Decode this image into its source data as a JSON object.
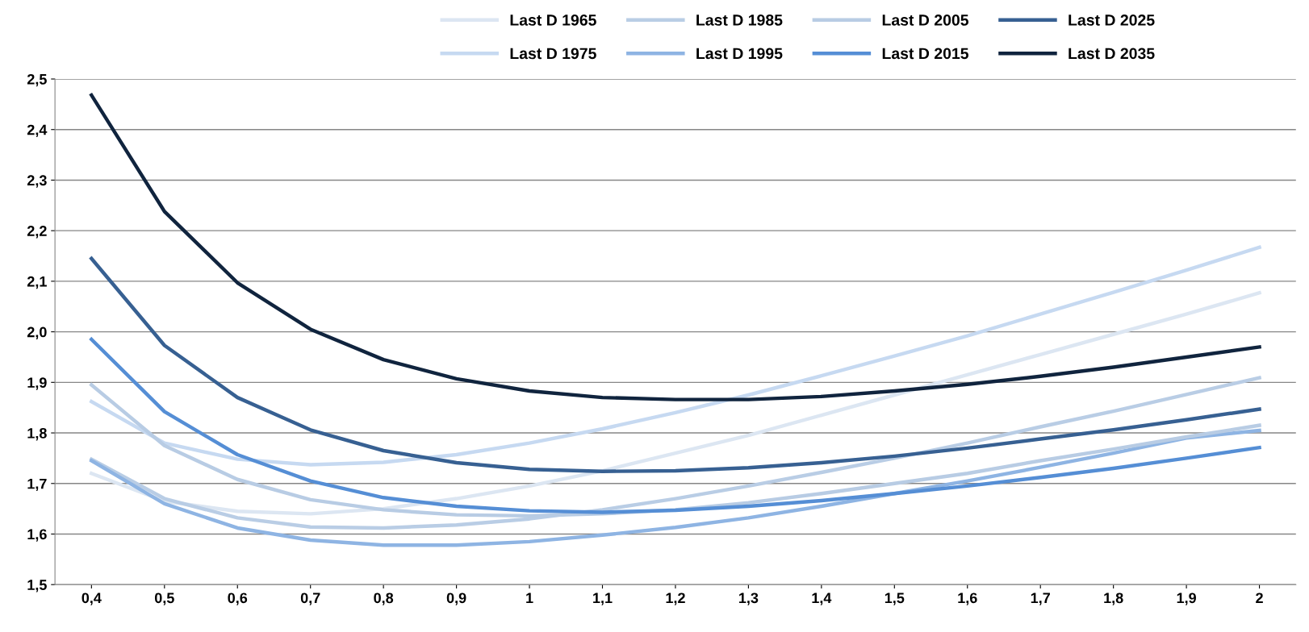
{
  "chart_data": {
    "type": "line",
    "categories": [
      "0,4",
      "0,5",
      "0,6",
      "0,7",
      "0,8",
      "0,9",
      "1",
      "1,1",
      "1,2",
      "1,3",
      "1,4",
      "1,5",
      "1,6",
      "1,7",
      "1,8",
      "1,9",
      "2"
    ],
    "series": [
      {
        "name": "Last D 1965",
        "color": "#dce6f2",
        "values": [
          1.72,
          1.665,
          1.645,
          1.64,
          1.65,
          1.67,
          1.695,
          1.725,
          1.76,
          1.795,
          1.835,
          1.875,
          1.915,
          1.955,
          1.995,
          2.035,
          2.077
        ]
      },
      {
        "name": "Last D 1975",
        "color": "#c6d9f1",
        "values": [
          1.862,
          1.78,
          1.748,
          1.737,
          1.742,
          1.757,
          1.78,
          1.808,
          1.84,
          1.875,
          1.913,
          1.952,
          1.992,
          2.035,
          2.078,
          2.122,
          2.167
        ]
      },
      {
        "name": "Last D 1985",
        "color": "#b9cde5",
        "values": [
          1.748,
          1.67,
          1.632,
          1.614,
          1.612,
          1.618,
          1.63,
          1.648,
          1.67,
          1.695,
          1.722,
          1.75,
          1.78,
          1.812,
          1.843,
          1.876,
          1.909
        ]
      },
      {
        "name": "Last D 1995",
        "color": "#8eb4e3",
        "values": [
          1.745,
          1.66,
          1.612,
          1.588,
          1.578,
          1.578,
          1.585,
          1.598,
          1.613,
          1.632,
          1.655,
          1.68,
          1.705,
          1.732,
          1.76,
          1.79,
          1.805
        ]
      },
      {
        "name": "Last D 2005",
        "color": "#b8cce4",
        "values": [
          1.895,
          1.775,
          1.708,
          1.668,
          1.648,
          1.638,
          1.636,
          1.64,
          1.648,
          1.662,
          1.68,
          1.7,
          1.72,
          1.745,
          1.768,
          1.792,
          1.815
        ]
      },
      {
        "name": "Last D 2015",
        "color": "#558ed5",
        "values": [
          1.985,
          1.842,
          1.757,
          1.705,
          1.672,
          1.655,
          1.646,
          1.643,
          1.647,
          1.655,
          1.666,
          1.68,
          1.695,
          1.712,
          1.73,
          1.75,
          1.771
        ]
      },
      {
        "name": "Last D 2025",
        "color": "#376092",
        "values": [
          2.145,
          1.973,
          1.87,
          1.806,
          1.765,
          1.741,
          1.728,
          1.724,
          1.725,
          1.731,
          1.741,
          1.754,
          1.77,
          1.788,
          1.806,
          1.826,
          1.847
        ]
      },
      {
        "name": "Last D 2035",
        "color": "#10243e",
        "values": [
          2.468,
          2.238,
          2.097,
          2.005,
          1.945,
          1.907,
          1.883,
          1.87,
          1.866,
          1.866,
          1.872,
          1.883,
          1.896,
          1.912,
          1.93,
          1.95,
          1.97
        ]
      }
    ],
    "ylim": [
      1.5,
      2.5
    ],
    "yticks": [
      {
        "value": 1.5,
        "label": "1,5"
      },
      {
        "value": 1.6,
        "label": "1,6"
      },
      {
        "value": 1.7,
        "label": "1,7"
      },
      {
        "value": 1.8,
        "label": "1,8"
      },
      {
        "value": 1.9,
        "label": "1,9"
      },
      {
        "value": 2.0,
        "label": "2,0"
      },
      {
        "value": 2.1,
        "label": "2,1"
      },
      {
        "value": 2.2,
        "label": "2,2"
      },
      {
        "value": 2.3,
        "label": "2,3"
      },
      {
        "value": 2.4,
        "label": "2,4"
      },
      {
        "value": 2.5,
        "label": "2,5"
      }
    ],
    "grid": "y",
    "legend": "top",
    "marker": "none",
    "line_style": "solid"
  }
}
